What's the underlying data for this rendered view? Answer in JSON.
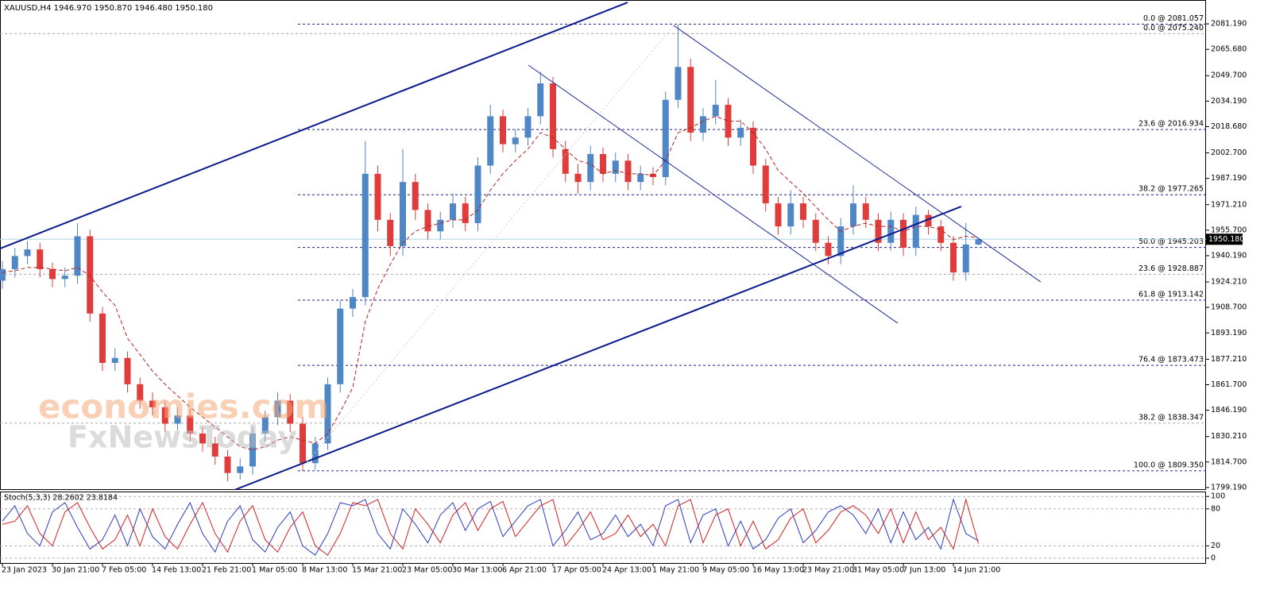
{
  "chart_data": [
    {
      "type": "candlestick",
      "title": "XAUUSD,H4  1946.970 1950.870 1946.480 1950.180",
      "categories": [
        "23 Jan 2023",
        null,
        null,
        null,
        "30 Jan 21:00",
        null,
        null,
        null,
        "7 Feb 05:00",
        null,
        null,
        null,
        "14 Feb 13:00",
        null,
        null,
        null,
        "21 Feb 21:00",
        null,
        null,
        null,
        "1 Mar 05:00",
        null,
        null,
        null,
        "8 Mar 13:00",
        null,
        null,
        null,
        "15 Mar 21:00",
        null,
        null,
        null,
        "23 Mar 05:00",
        null,
        null,
        null,
        "30 Mar 13:00",
        null,
        null,
        null,
        "6 Apr 21:00",
        null,
        null,
        null,
        "17 Apr 05:00",
        null,
        null,
        null,
        "24 Apr 13:00",
        null,
        null,
        null,
        "1 May 21:00",
        null,
        null,
        null,
        "9 May 05:00",
        null,
        null,
        null,
        "16 May 13:00",
        null,
        null,
        null,
        "23 May 21:00",
        null,
        null,
        null,
        "31 May 05:00",
        null,
        null,
        null,
        "7 Jun 13:00",
        null,
        null,
        null,
        "14 Jun 21:00",
        null,
        null
      ],
      "open": [
        1925,
        1932,
        1940,
        1944,
        1932,
        1926,
        1928,
        1952,
        1905,
        1875,
        1878,
        1862,
        1852,
        1848,
        1838,
        1843,
        1832,
        1826,
        1818,
        1808,
        1812,
        1832,
        1842,
        1852,
        1838,
        1814,
        1826,
        1862,
        1908,
        1915,
        1990,
        1962,
        1946,
        1985,
        1968,
        1955,
        1962,
        1972,
        1960,
        1995,
        2025,
        2008,
        2012,
        2025,
        2045,
        2005,
        1990,
        1985,
        2002,
        1990,
        1998,
        1985,
        1990,
        1988,
        2035,
        2055,
        2015,
        2025,
        2032,
        2012,
        2018,
        1995,
        1972,
        1958,
        1972,
        1962,
        1948,
        1940,
        1958,
        1972,
        1962,
        1948,
        1962,
        1945,
        1965,
        1958,
        1948,
        1930,
        1946.97
      ],
      "high": [
        1937,
        1945,
        1949,
        1948,
        1936,
        1933,
        1960,
        1956,
        1909,
        1884,
        1882,
        1866,
        1857,
        1852,
        1848,
        1847,
        1836,
        1830,
        1822,
        1817,
        1836,
        1846,
        1857,
        1856,
        1842,
        1830,
        1866,
        1913,
        1920,
        2010,
        1995,
        1966,
        2005,
        1990,
        1972,
        1967,
        1978,
        1976,
        2000,
        2032,
        2029,
        2017,
        2030,
        2052,
        2049,
        2010,
        1996,
        2007,
        2006,
        2003,
        2002,
        1995,
        1994,
        2040,
        2081.057,
        2060,
        2030,
        2047,
        2036,
        2023,
        2022,
        1999,
        1976,
        1980,
        1976,
        1966,
        1952,
        1963,
        1983,
        1976,
        1966,
        1967,
        1966,
        1970,
        1968,
        1962,
        1952,
        1960,
        1950.87
      ],
      "low": [
        1920,
        1927,
        1935,
        1927,
        1921,
        1921,
        1923,
        1900,
        1870,
        1870,
        1857,
        1847,
        1843,
        1833,
        1834,
        1827,
        1821,
        1813,
        1803,
        1804,
        1807,
        1827,
        1837,
        1833,
        1809.35,
        1810,
        1822,
        1857,
        1903,
        1910,
        1955,
        1940,
        1940,
        1962,
        1950,
        1950,
        1957,
        1955,
        1955,
        1990,
        2003,
        2003,
        2007,
        2020,
        2000,
        1985,
        1978,
        1980,
        1985,
        1985,
        1980,
        1980,
        1983,
        1983,
        2030,
        2010,
        2010,
        2020,
        2007,
        2007,
        1990,
        1967,
        1953,
        1953,
        1957,
        1943,
        1935,
        1935,
        1953,
        1957,
        1943,
        1943,
        1940,
        1940,
        1953,
        1943,
        1925,
        1925,
        1946.48
      ],
      "close": [
        1932,
        1940,
        1944,
        1932,
        1926,
        1928,
        1952,
        1905,
        1875,
        1878,
        1862,
        1852,
        1848,
        1838,
        1843,
        1832,
        1826,
        1818,
        1808,
        1812,
        1832,
        1842,
        1852,
        1838,
        1814,
        1826,
        1862,
        1908,
        1915,
        1990,
        1962,
        1946,
        1985,
        1968,
        1955,
        1962,
        1972,
        1960,
        1995,
        2025,
        2008,
        2012,
        2025,
        2045,
        2005,
        1990,
        1985,
        2002,
        1990,
        1998,
        1985,
        1990,
        1988,
        2035,
        2055,
        2015,
        2025,
        2032,
        2012,
        2018,
        1995,
        1972,
        1958,
        1972,
        1962,
        1948,
        1940,
        1958,
        1972,
        1962,
        1948,
        1962,
        1945,
        1965,
        1958,
        1948,
        1930,
        1946.97,
        1950.18
      ],
      "up_color": "#4f86c6",
      "down_color": "#e03c3c",
      "ma": {
        "color": "#b22222",
        "values": [
          1930,
          1931,
          1933,
          1933,
          1932,
          1931,
          1933,
          1928,
          1918,
          1910,
          1890,
          1880,
          1870,
          1862,
          1855,
          1848,
          1842,
          1836,
          1830,
          1824,
          1822,
          1824,
          1828,
          1830,
          1828,
          1826,
          1832,
          1845,
          1860,
          1900,
          1920,
          1935,
          1948,
          1955,
          1958,
          1960,
          1962,
          1962,
          1968,
          1980,
          1990,
          1998,
          2005,
          2015,
          2012,
          2005,
          1998,
          1996,
          1990,
          1992,
          1990,
          1990,
          1989,
          1998,
          2015,
          2018,
          2022,
          2025,
          2022,
          2022,
          2015,
          2005,
          1992,
          1985,
          1978,
          1970,
          1962,
          1955,
          1958,
          1960,
          1958,
          1958,
          1955,
          1958,
          1958,
          1956,
          1950,
          1952,
          1951
        ]
      },
      "ylim": [
        1797.7,
        2095.7
      ],
      "yticks": [
        {
          "value": 2081.19,
          "label": "2081.190"
        },
        {
          "value": 2065.68,
          "label": "2065.680"
        },
        {
          "value": 2049.7,
          "label": "2049.700"
        },
        {
          "value": 2034.19,
          "label": "2034.190"
        },
        {
          "value": 2018.68,
          "label": "2018.680"
        },
        {
          "value": 2002.7,
          "label": "2002.700"
        },
        {
          "value": 1987.19,
          "label": "1987.190"
        },
        {
          "value": 1971.21,
          "label": "1971.210"
        },
        {
          "value": 1955.7,
          "label": "1955.700"
        },
        {
          "value": 1940.19,
          "label": "1940.190"
        },
        {
          "value": 1924.21,
          "label": "1924.210"
        },
        {
          "value": 1908.7,
          "label": "1908.700"
        },
        {
          "value": 1893.19,
          "label": "1893.190"
        },
        {
          "value": 1877.21,
          "label": "1877.210"
        },
        {
          "value": 1861.7,
          "label": "1861.700"
        },
        {
          "value": 1846.19,
          "label": "1846.190"
        },
        {
          "value": 1830.21,
          "label": "1830.210"
        },
        {
          "value": 1814.7,
          "label": "1814.700"
        },
        {
          "value": 1799.19,
          "label": "1799.190"
        }
      ],
      "last_price": {
        "value": 1950.18,
        "label": "1950.180",
        "color": "#a9d6ea"
      },
      "fib_groups": [
        {
          "color": "#a8a8a8",
          "start": -0.19,
          "levels": [
            {
              "value": 2075.24,
              "label": "0.0 @ 2075.240"
            },
            {
              "value": 1928.887,
              "label": "23.6 @ 1928.887"
            },
            {
              "value": 1838.347,
              "label": "38.2 @ 1838.347"
            }
          ]
        },
        {
          "color": "#1c1c8a",
          "start": 23.62,
          "levels": [
            {
              "value": 2081.057,
              "label": "0.0 @ 2081.057"
            },
            {
              "value": 2016.934,
              "label": "23.6 @ 2016.934"
            },
            {
              "value": 1977.265,
              "label": "38.2 @ 1977.265"
            },
            {
              "value": 1945.203,
              "label": "50.0 @ 1945.203"
            },
            {
              "value": 1913.142,
              "label": "61.8 @ 1913.142"
            },
            {
              "value": 1873.473,
              "label": "76.4 @ 1873.473"
            },
            {
              "value": 1809.35,
              "label": "100.0 @ 1809.350"
            }
          ]
        }
      ],
      "trendlines": [
        {
          "color": "#0a1a8c",
          "width": 2,
          "x": [
            -0.19,
            49.97
          ],
          "y": [
            1944.5,
            2094.2
          ]
        },
        {
          "color": "#0a1a8c",
          "width": 2,
          "x": [
            18.54,
            76.63
          ],
          "y": [
            1797.7,
            1970.1
          ]
        },
        {
          "color": "#1c2a9a",
          "width": 1,
          "x": [
            42.03,
            71.56
          ],
          "y": [
            2056.1,
            1899.1
          ]
        },
        {
          "color": "#1c2a9a",
          "width": 1,
          "x": [
            53.65,
            82.98
          ],
          "y": [
            2080.2,
            1924.2
          ]
        },
        {
          "color": "#d0d0d0",
          "width": 1,
          "style": "dotted",
          "x": [
            23.94,
            53.65
          ],
          "y": [
            1810.8,
            2080.2
          ]
        }
      ],
      "watermark": [
        "economies.com",
        "FxNewsToday"
      ]
    },
    {
      "type": "line",
      "title": "Stoch(5,3,3) 28.2602 23.8184",
      "series": [
        {
          "color": "#2b3cc4",
          "values": [
            60,
            85,
            40,
            20,
            75,
            90,
            50,
            15,
            30,
            70,
            20,
            80,
            35,
            15,
            55,
            90,
            40,
            10,
            60,
            85,
            30,
            10,
            50,
            75,
            20,
            5,
            40,
            90,
            85,
            95,
            40,
            15,
            80,
            55,
            25,
            70,
            90,
            45,
            80,
            92,
            35,
            60,
            85,
            95,
            20,
            45,
            75,
            30,
            40,
            70,
            35,
            55,
            20,
            85,
            95,
            25,
            70,
            80,
            20,
            60,
            15,
            30,
            65,
            80,
            25,
            45,
            75,
            85,
            70,
            40,
            80,
            25,
            75,
            30,
            50,
            15,
            95,
            40,
            28.2602
          ]
        },
        {
          "color": "#d62020",
          "values": [
            55,
            60,
            85,
            40,
            20,
            75,
            90,
            50,
            15,
            30,
            70,
            20,
            80,
            35,
            15,
            55,
            90,
            40,
            10,
            60,
            85,
            30,
            10,
            50,
            75,
            20,
            5,
            40,
            90,
            85,
            95,
            40,
            15,
            80,
            55,
            25,
            70,
            90,
            45,
            80,
            92,
            35,
            60,
            85,
            95,
            20,
            45,
            75,
            30,
            40,
            70,
            35,
            55,
            20,
            85,
            95,
            25,
            70,
            80,
            20,
            60,
            15,
            30,
            65,
            80,
            25,
            45,
            75,
            85,
            70,
            40,
            80,
            25,
            75,
            30,
            50,
            15,
            95,
            23.8184
          ]
        }
      ],
      "ylim": [
        -9,
        108
      ],
      "yticks": [
        100,
        80,
        20,
        0
      ],
      "grid": true
    }
  ]
}
